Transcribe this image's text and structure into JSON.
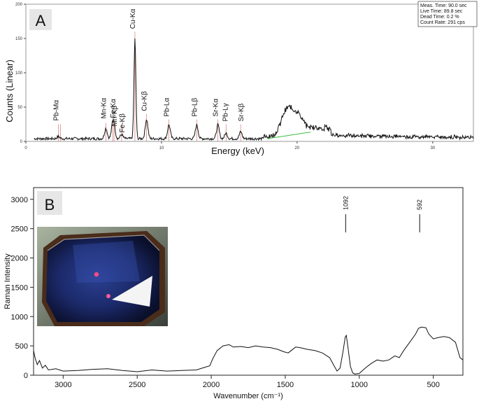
{
  "chart_data": [
    {
      "type": "line",
      "panel_label": "A",
      "xlabel": "Energy (keV)",
      "ylabel": "Counts (Linear)",
      "xlim": [
        0,
        33
      ],
      "ylim": [
        0,
        200
      ],
      "x_ticks": [
        0,
        10,
        20,
        30
      ],
      "y_ticks": [
        0,
        50,
        100,
        150,
        200
      ],
      "info_box": [
        "Meas. Time: 90.0 sec",
        "Live Time: 89.8 sec",
        "Dead Time: 0.2 %",
        "Count Rate: 291 cps"
      ],
      "peaks": [
        {
          "label": "Pb-Mα",
          "x": 2.4,
          "y": 3
        },
        {
          "label": "Mn-Kα",
          "x": 5.9,
          "y": 15
        },
        {
          "label": "Fe-Kα",
          "x": 6.4,
          "y": 18
        },
        {
          "label": "Mn-Kβ",
          "x": 6.5,
          "y": 14
        },
        {
          "label": "Fe-Kβ",
          "x": 7.06,
          "y": 6
        },
        {
          "label": "Cu-Kα",
          "x": 8.04,
          "y": 145
        },
        {
          "label": "Cu-Kβ",
          "x": 8.9,
          "y": 28
        },
        {
          "label": "Pb-Lα",
          "x": 10.55,
          "y": 20
        },
        {
          "label": "Pb-Lβ",
          "x": 12.6,
          "y": 20
        },
        {
          "label": "Sr-Kα",
          "x": 14.16,
          "y": 20
        },
        {
          "label": "Pb-Lγ",
          "x": 14.76,
          "y": 8
        },
        {
          "label": "Sr-Kβ",
          "x": 15.84,
          "y": 10
        }
      ],
      "scatter_hump": {
        "center": 19.3,
        "height": 40,
        "end": 22.5
      }
    },
    {
      "type": "line",
      "panel_label": "B",
      "xlabel": "Wavenumber (cm⁻¹)",
      "ylabel": "Raman Intensity",
      "xlim": [
        3200,
        300
      ],
      "ylim": [
        0,
        3200
      ],
      "x_ticks": [
        3000,
        2500,
        2000,
        1500,
        1000,
        500
      ],
      "y_ticks": [
        0,
        500,
        1000,
        1500,
        2000,
        2500,
        3000
      ],
      "peak_labels": [
        {
          "label": "1092",
          "x": 1092
        },
        {
          "label": "592",
          "x": 592
        }
      ],
      "points": [
        [
          3200,
          420
        ],
        [
          3190,
          300
        ],
        [
          3175,
          180
        ],
        [
          3160,
          250
        ],
        [
          3140,
          120
        ],
        [
          3120,
          170
        ],
        [
          3100,
          90
        ],
        [
          3050,
          110
        ],
        [
          3000,
          70
        ],
        [
          2900,
          80
        ],
        [
          2800,
          100
        ],
        [
          2700,
          110
        ],
        [
          2600,
          80
        ],
        [
          2500,
          60
        ],
        [
          2400,
          90
        ],
        [
          2300,
          70
        ],
        [
          2200,
          80
        ],
        [
          2100,
          90
        ],
        [
          2050,
          130
        ],
        [
          2010,
          160
        ],
        [
          1990,
          280
        ],
        [
          1960,
          420
        ],
        [
          1920,
          500
        ],
        [
          1880,
          520
        ],
        [
          1850,
          480
        ],
        [
          1800,
          490
        ],
        [
          1750,
          470
        ],
        [
          1700,
          500
        ],
        [
          1650,
          480
        ],
        [
          1600,
          470
        ],
        [
          1550,
          440
        ],
        [
          1510,
          400
        ],
        [
          1480,
          380
        ],
        [
          1460,
          420
        ],
        [
          1430,
          480
        ],
        [
          1400,
          470
        ],
        [
          1350,
          440
        ],
        [
          1300,
          420
        ],
        [
          1250,
          380
        ],
        [
          1200,
          300
        ],
        [
          1170,
          160
        ],
        [
          1150,
          70
        ],
        [
          1130,
          120
        ],
        [
          1110,
          400
        ],
        [
          1095,
          650
        ],
        [
          1088,
          680
        ],
        [
          1075,
          450
        ],
        [
          1060,
          150
        ],
        [
          1045,
          40
        ],
        [
          1030,
          20
        ],
        [
          1000,
          30
        ],
        [
          960,
          120
        ],
        [
          920,
          200
        ],
        [
          880,
          260
        ],
        [
          840,
          240
        ],
        [
          800,
          260
        ],
        [
          760,
          330
        ],
        [
          730,
          300
        ],
        [
          700,
          420
        ],
        [
          660,
          560
        ],
        [
          620,
          700
        ],
        [
          600,
          800
        ],
        [
          580,
          820
        ],
        [
          550,
          810
        ],
        [
          530,
          700
        ],
        [
          500,
          620
        ],
        [
          470,
          640
        ],
        [
          430,
          660
        ],
        [
          390,
          640
        ],
        [
          350,
          560
        ],
        [
          320,
          300
        ],
        [
          300,
          260
        ]
      ]
    }
  ]
}
